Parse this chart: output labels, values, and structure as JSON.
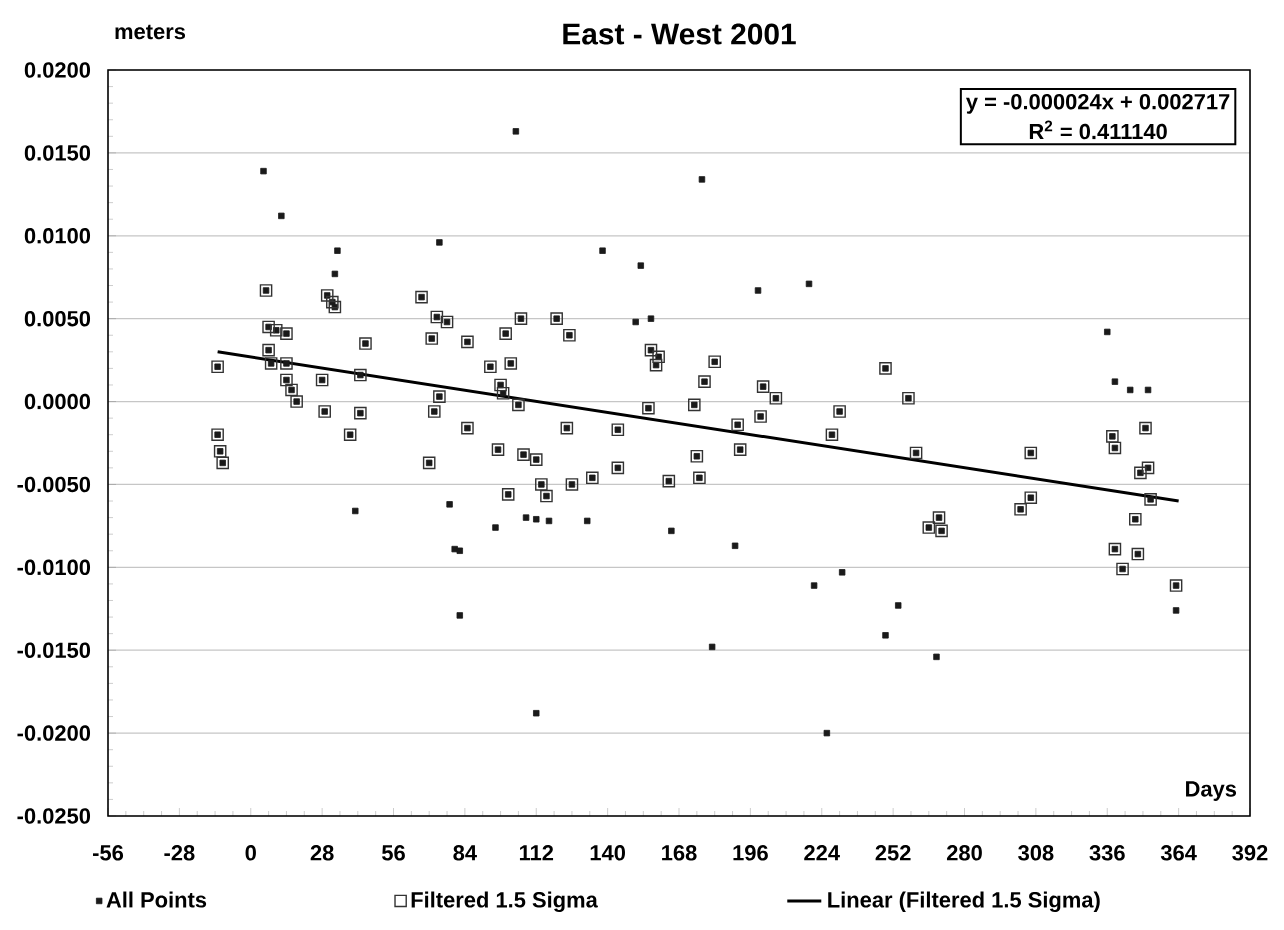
{
  "chart_data": {
    "type": "scatter",
    "title": "East - West 2001",
    "xlabel": "Days",
    "ylabel": "meters",
    "annotations": [
      "y = -0.000024x + 0.002717",
      "R$^{2}$ = 0.411140"
    ],
    "xlim": [
      -56,
      392
    ],
    "xticks": [
      -56,
      -28,
      0,
      28,
      56,
      84,
      112,
      140,
      168,
      196,
      224,
      252,
      280,
      308,
      336,
      364,
      392
    ],
    "ylim": [
      -0.025,
      0.02
    ],
    "yticks": [
      {
        "value": 0.02,
        "label": "0.0200"
      },
      {
        "value": 0.015,
        "label": "0.0150"
      },
      {
        "value": 0.01,
        "label": "0.0100"
      },
      {
        "value": 0.005,
        "label": "0.0050"
      },
      {
        "value": 0,
        "label": "0.0000"
      },
      {
        "value": -0.005,
        "label": "-0.0050"
      },
      {
        "value": -0.01,
        "label": "-0.0100"
      },
      {
        "value": -0.015,
        "label": "-0.0150"
      },
      {
        "value": -0.02,
        "label": "-0.0200"
      },
      {
        "value": -0.025,
        "label": "-0.0250"
      }
    ],
    "grid": "y",
    "legend": "bottom",
    "marker": "square",
    "series": [
      {
        "name": "All Points",
        "color": "#1a1a1a",
        "x": [
          -13,
          -13,
          -12,
          -11,
          6,
          7,
          10,
          14,
          7,
          8,
          14,
          14,
          16,
          18,
          28,
          29,
          30,
          32,
          33,
          43,
          45,
          43,
          39,
          67,
          73,
          77,
          71,
          85,
          72,
          74,
          70,
          85,
          100,
          102,
          94,
          98,
          99,
          105,
          106,
          97,
          107,
          112,
          101,
          114,
          116,
          126,
          134,
          144,
          124,
          144,
          120,
          125,
          157,
          160,
          159,
          156,
          182,
          178,
          174,
          175,
          176,
          164,
          191,
          192,
          201,
          206,
          200,
          231,
          228,
          249,
          258,
          261,
          266,
          270,
          271,
          306,
          306,
          302,
          338,
          339,
          351,
          349,
          352,
          353,
          347,
          339,
          342,
          348,
          363,
          5,
          12,
          34,
          33,
          74,
          104,
          138,
          153,
          151,
          157,
          177,
          199,
          219,
          41,
          78,
          80,
          82,
          82,
          96,
          108,
          112,
          117,
          132,
          112,
          165,
          190,
          181,
          221,
          232,
          254,
          249,
          269,
          226,
          336,
          339,
          345,
          352,
          363
        ],
        "values": [
          0.0021,
          -0.002,
          -0.003,
          -0.0037,
          0.0067,
          0.0045,
          0.0043,
          0.0041,
          0.0031,
          0.0023,
          0.0023,
          0.0013,
          0.0007,
          0.0,
          0.0013,
          -0.0006,
          0.0064,
          0.006,
          0.0057,
          0.0016,
          0.0035,
          -0.0007,
          -0.002,
          0.0063,
          0.0051,
          0.0048,
          0.0038,
          0.0036,
          -0.0006,
          0.0003,
          -0.0037,
          -0.0016,
          0.0041,
          0.0023,
          0.0021,
          0.001,
          0.0005,
          -0.0002,
          0.005,
          -0.0029,
          -0.0032,
          -0.0035,
          -0.0056,
          -0.005,
          -0.0057,
          -0.005,
          -0.0046,
          -0.004,
          -0.0016,
          -0.0017,
          0.005,
          0.004,
          0.0031,
          0.0027,
          0.0022,
          -0.0004,
          0.0024,
          0.0012,
          -0.0002,
          -0.0033,
          -0.0046,
          -0.0048,
          -0.0014,
          -0.0029,
          0.0009,
          0.0002,
          -0.0009,
          -0.0006,
          -0.002,
          0.002,
          0.0002,
          -0.0031,
          -0.0076,
          -0.007,
          -0.0078,
          -0.0031,
          -0.0058,
          -0.0065,
          -0.0021,
          -0.0028,
          -0.0016,
          -0.0043,
          -0.004,
          -0.0059,
          -0.0071,
          -0.0089,
          -0.0101,
          -0.0092,
          -0.0111,
          0.0139,
          0.0112,
          0.0091,
          0.0077,
          0.0096,
          0.0163,
          0.0091,
          0.0082,
          0.0048,
          0.005,
          0.0134,
          0.0067,
          0.0071,
          -0.0066,
          -0.0062,
          -0.0089,
          -0.009,
          -0.0129,
          -0.0076,
          -0.007,
          -0.0071,
          -0.0072,
          -0.0072,
          -0.0188,
          -0.0078,
          -0.0087,
          -0.0148,
          -0.0111,
          -0.0103,
          -0.0123,
          -0.0141,
          -0.0154,
          -0.02,
          0.0042,
          0.0012,
          0.0007,
          0.0007,
          -0.0126
        ]
      },
      {
        "name": "Filtered 1.5 Sigma",
        "color": "#333333",
        "x": [
          -13,
          -13,
          -12,
          -11,
          6,
          7,
          10,
          14,
          7,
          8,
          14,
          14,
          16,
          18,
          28,
          29,
          30,
          32,
          33,
          43,
          45,
          43,
          39,
          67,
          73,
          77,
          71,
          85,
          72,
          74,
          70,
          85,
          100,
          102,
          94,
          98,
          99,
          105,
          106,
          97,
          107,
          112,
          101,
          114,
          116,
          126,
          134,
          144,
          124,
          144,
          120,
          125,
          157,
          160,
          159,
          156,
          182,
          178,
          174,
          175,
          176,
          164,
          191,
          192,
          201,
          206,
          200,
          231,
          228,
          249,
          258,
          261,
          266,
          270,
          271,
          306,
          306,
          302,
          338,
          339,
          351,
          349,
          352,
          353,
          347,
          339,
          342,
          348,
          363
        ],
        "values": [
          0.0021,
          -0.002,
          -0.003,
          -0.0037,
          0.0067,
          0.0045,
          0.0043,
          0.0041,
          0.0031,
          0.0023,
          0.0023,
          0.0013,
          0.0007,
          0.0,
          0.0013,
          -0.0006,
          0.0064,
          0.006,
          0.0057,
          0.0016,
          0.0035,
          -0.0007,
          -0.002,
          0.0063,
          0.0051,
          0.0048,
          0.0038,
          0.0036,
          -0.0006,
          0.0003,
          -0.0037,
          -0.0016,
          0.0041,
          0.0023,
          0.0021,
          0.001,
          0.0005,
          -0.0002,
          0.005,
          -0.0029,
          -0.0032,
          -0.0035,
          -0.0056,
          -0.005,
          -0.0057,
          -0.005,
          -0.0046,
          -0.004,
          -0.0016,
          -0.0017,
          0.005,
          0.004,
          0.0031,
          0.0027,
          0.0022,
          -0.0004,
          0.0024,
          0.0012,
          -0.0002,
          -0.0033,
          -0.0046,
          -0.0048,
          -0.0014,
          -0.0029,
          0.0009,
          0.0002,
          -0.0009,
          -0.0006,
          -0.002,
          0.002,
          0.0002,
          -0.0031,
          -0.0076,
          -0.007,
          -0.0078,
          -0.0031,
          -0.0058,
          -0.0065,
          -0.0021,
          -0.0028,
          -0.0016,
          -0.0043,
          -0.004,
          -0.0059,
          -0.0071,
          -0.0089,
          -0.0101,
          -0.0092,
          -0.0111
        ]
      },
      {
        "name": "Linear (Filtered 1.5 Sigma)",
        "type": "line",
        "color": "#000000",
        "marker": "none",
        "line_style": "solid",
        "x": [
          -13,
          364
        ],
        "values": [
          0.003,
          -0.006
        ]
      }
    ]
  }
}
